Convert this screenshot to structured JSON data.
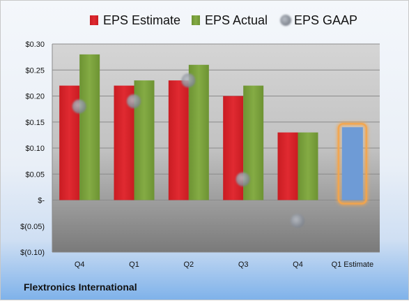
{
  "company": "Flextronics International",
  "chart_data": {
    "type": "bar",
    "categories": [
      "Q4",
      "Q1",
      "Q2",
      "Q3",
      "Q4",
      "Q1 Estimate"
    ],
    "series": [
      {
        "name": "EPS Estimate",
        "color": "#dc2229",
        "values": [
          0.22,
          0.22,
          0.23,
          0.2,
          0.13,
          null
        ]
      },
      {
        "name": "EPS Actual",
        "color": "#7ba13d",
        "values": [
          0.28,
          0.23,
          0.26,
          0.22,
          0.13,
          null
        ]
      },
      {
        "name": "EPS GAAP",
        "color": "#a4aab3",
        "marker": "circle",
        "values": [
          0.18,
          0.19,
          0.23,
          0.04,
          -0.04,
          null
        ]
      }
    ],
    "estimate": {
      "category": "Q1 Estimate",
      "value": 0.14,
      "color": "#6e9bd6",
      "highlight_color": "#f5a54a"
    },
    "yticks": [
      {
        "value": 0.3,
        "label": "$0.30"
      },
      {
        "value": 0.25,
        "label": "$0.25"
      },
      {
        "value": 0.2,
        "label": "$0.20"
      },
      {
        "value": 0.15,
        "label": "$0.15"
      },
      {
        "value": 0.1,
        "label": "$0.10"
      },
      {
        "value": 0.05,
        "label": "$0.05"
      },
      {
        "value": 0.0,
        "label": "$-"
      },
      {
        "value": -0.05,
        "label": "$(0.05)"
      },
      {
        "value": -0.1,
        "label": "$(0.10)"
      }
    ],
    "ylim": [
      -0.1,
      0.3
    ],
    "grid": true,
    "legend": "top"
  }
}
